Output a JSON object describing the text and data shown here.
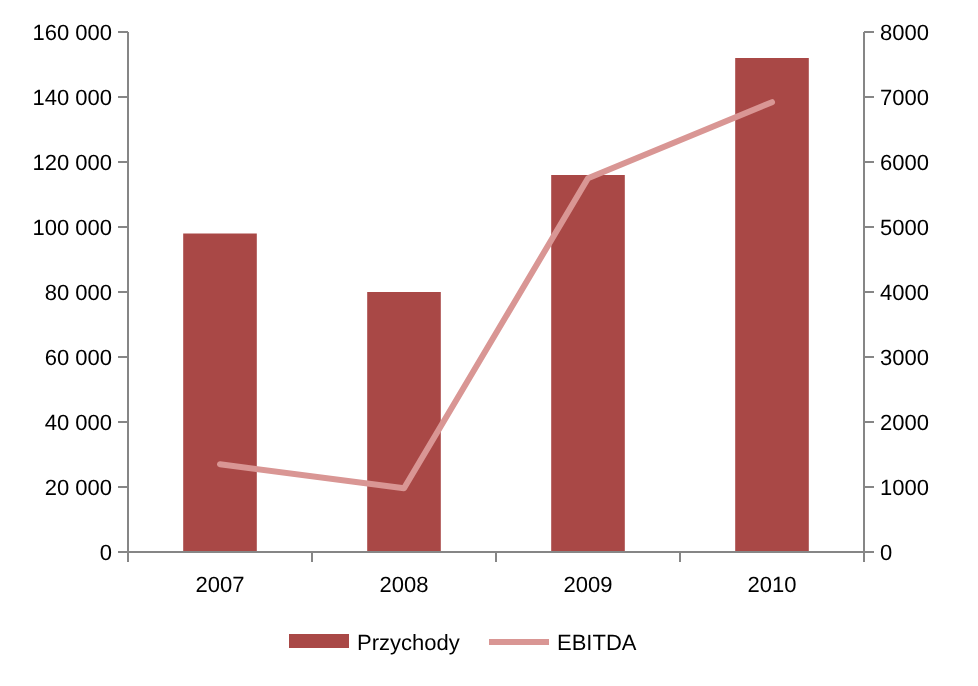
{
  "chart_data": {
    "type": "bar",
    "categories": [
      "2007",
      "2008",
      "2009",
      "2010"
    ],
    "series": [
      {
        "name": "Przychody",
        "color": "#a94846",
        "values": [
          98000,
          80000,
          116000,
          152000
        ]
      },
      {
        "name": "EBITDA",
        "type": "line",
        "axis": "y2",
        "color": "#d99694",
        "values": [
          1350,
          980,
          5750,
          6920
        ]
      }
    ],
    "ylim": [
      0,
      160000
    ],
    "yticks": [
      0,
      {
        "value": 20000,
        "label": "20 000"
      },
      {
        "value": 40000,
        "label": "40 000"
      },
      {
        "value": 60000,
        "label": "60 000"
      },
      {
        "value": 80000,
        "label": "80 000"
      },
      {
        "value": 100000,
        "label": "100 000"
      },
      {
        "value": 120000,
        "label": "120 000"
      },
      {
        "value": 140000,
        "label": "140 000"
      },
      {
        "value": 160000,
        "label": "160 000"
      }
    ],
    "y2lim": [
      0,
      8000
    ],
    "y2ticks": [
      0,
      1000,
      2000,
      3000,
      4000,
      5000,
      6000,
      7000,
      8000
    ],
    "legend": "bottom",
    "grid": false,
    "marker": "none"
  }
}
